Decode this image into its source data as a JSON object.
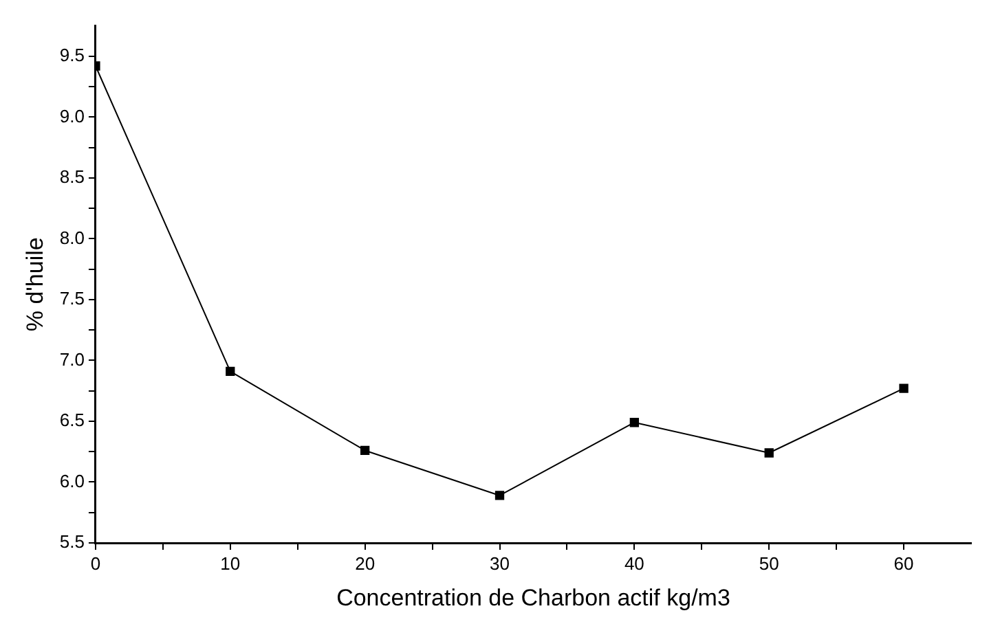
{
  "chart_data": {
    "type": "line",
    "xlabel": "Concentration de Charbon actif kg/m3",
    "ylabel": "% d'huile",
    "x": [
      0,
      10,
      20,
      30,
      40,
      50,
      60
    ],
    "series": [
      {
        "color": "#000000",
        "values": [
          9.42,
          6.91,
          6.26,
          5.89,
          6.49,
          6.24,
          6.77
        ]
      }
    ],
    "xlim": [
      0,
      65
    ],
    "xticks": [
      0,
      {
        "value": 5,
        "label": null
      },
      10,
      {
        "value": 15,
        "label": null
      },
      20,
      {
        "value": 25,
        "label": null
      },
      30,
      {
        "value": 35,
        "label": null
      },
      40,
      {
        "value": 45,
        "label": null
      },
      50,
      {
        "value": 55,
        "label": null
      },
      60
    ],
    "ylim": [
      5.5,
      9.75
    ],
    "yticks": [
      5.5,
      {
        "value": 5.75,
        "label": null
      },
      {
        "value": 6,
        "label": "6.0"
      },
      {
        "value": 6.25,
        "label": null
      },
      6.5,
      {
        "value": 6.75,
        "label": null
      },
      {
        "value": 7,
        "label": "7.0"
      },
      {
        "value": 7.25,
        "label": null
      },
      7.5,
      {
        "value": 7.75,
        "label": null
      },
      {
        "value": 8,
        "label": "8.0"
      },
      {
        "value": 8.25,
        "label": null
      },
      8.5,
      {
        "value": 8.75,
        "label": null
      },
      {
        "value": 9,
        "label": "9.0"
      },
      {
        "value": 9.25,
        "label": null
      },
      9.5
    ],
    "grid": false,
    "legend": false,
    "marker": "square",
    "line_style": "solid"
  }
}
